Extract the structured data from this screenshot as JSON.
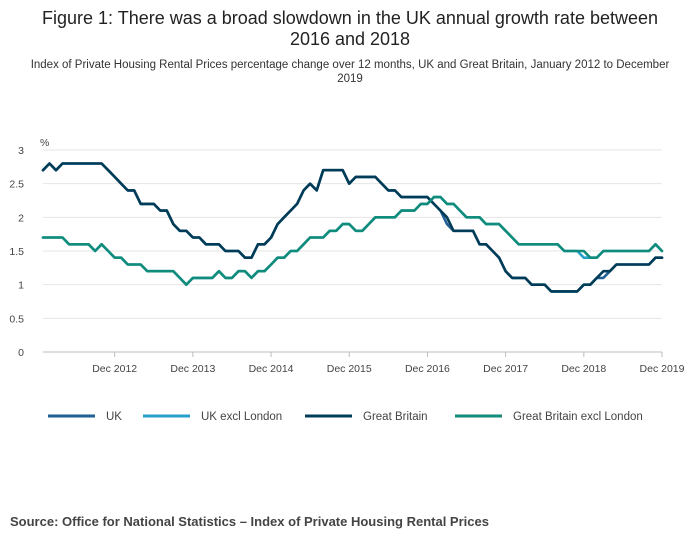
{
  "title": "Figure 1: There was a broad slowdown in the UK annual growth rate between 2016 and 2018",
  "subtitle": "Index of Private Housing Rental Prices percentage change over 12 months, UK and Great Britain, January 2012 to December 2019",
  "source": "Source: Office for National Statistics – Index of Private Housing Rental Prices",
  "colors": {
    "UK": "#206095",
    "UK excl London": "#27a0cc",
    "Great Britain": "#003c57",
    "Great Britain excl London": "#118c7b"
  },
  "chart_data": {
    "type": "line",
    "x_start": "Jan 2012",
    "x_end": "Dec 2019",
    "x_ticks": [
      "Dec 2012",
      "Dec 2013",
      "Dec 2014",
      "Dec 2015",
      "Dec 2016",
      "Dec 2017",
      "Dec 2018",
      "Dec 2019"
    ],
    "y_ticks": [
      "0",
      "0.5",
      "1",
      "1.5",
      "2",
      "2.5",
      "3"
    ],
    "ylim": [
      0,
      3
    ],
    "ylabel": "%",
    "grid": true,
    "legend_position": "bottom",
    "series": [
      {
        "name": "UK",
        "values": [
          2.7,
          2.8,
          2.7,
          2.8,
          2.8,
          2.8,
          2.8,
          2.8,
          2.8,
          2.8,
          2.7,
          2.6,
          2.5,
          2.4,
          2.4,
          2.2,
          2.2,
          2.2,
          2.1,
          2.1,
          1.9,
          1.8,
          1.8,
          1.7,
          1.7,
          1.6,
          1.6,
          1.6,
          1.5,
          1.5,
          1.5,
          1.4,
          1.4,
          1.6,
          1.6,
          1.7,
          1.9,
          2.0,
          2.1,
          2.2,
          2.4,
          2.5,
          2.4,
          2.7,
          2.7,
          2.7,
          2.7,
          2.5,
          2.6,
          2.6,
          2.6,
          2.6,
          2.5,
          2.4,
          2.4,
          2.3,
          2.3,
          2.3,
          2.3,
          2.3,
          2.2,
          2.1,
          1.9,
          1.8,
          1.8,
          1.8,
          1.8,
          1.6,
          1.6,
          1.5,
          1.4,
          1.2,
          1.1,
          1.1,
          1.1,
          1.0,
          1.0,
          1.0,
          0.9,
          0.9,
          0.9,
          0.9,
          0.9,
          1.0,
          1.0,
          1.1,
          1.1,
          1.2,
          1.3,
          1.3,
          1.3,
          1.3,
          1.3,
          1.3,
          1.4,
          1.4
        ]
      },
      {
        "name": "UK excl London",
        "values": [
          1.7,
          1.7,
          1.7,
          1.7,
          1.6,
          1.6,
          1.6,
          1.6,
          1.5,
          1.6,
          1.5,
          1.4,
          1.4,
          1.3,
          1.3,
          1.3,
          1.2,
          1.2,
          1.2,
          1.2,
          1.2,
          1.1,
          1.0,
          1.1,
          1.1,
          1.1,
          1.1,
          1.2,
          1.1,
          1.1,
          1.2,
          1.2,
          1.1,
          1.2,
          1.2,
          1.3,
          1.4,
          1.4,
          1.5,
          1.5,
          1.6,
          1.7,
          1.7,
          1.7,
          1.8,
          1.8,
          1.9,
          1.9,
          1.8,
          1.8,
          1.9,
          2.0,
          2.0,
          2.0,
          2.0,
          2.1,
          2.1,
          2.1,
          2.2,
          2.2,
          2.3,
          2.3,
          2.2,
          2.2,
          2.1,
          2.0,
          2.0,
          2.0,
          1.9,
          1.9,
          1.9,
          1.8,
          1.7,
          1.6,
          1.6,
          1.6,
          1.6,
          1.6,
          1.6,
          1.6,
          1.5,
          1.5,
          1.5,
          1.4,
          1.4,
          1.4,
          1.5,
          1.5,
          1.5,
          1.5,
          1.5,
          1.5,
          1.5,
          1.5,
          1.6,
          1.5
        ]
      },
      {
        "name": "Great Britain",
        "values": [
          2.7,
          2.8,
          2.7,
          2.8,
          2.8,
          2.8,
          2.8,
          2.8,
          2.8,
          2.8,
          2.7,
          2.6,
          2.5,
          2.4,
          2.4,
          2.2,
          2.2,
          2.2,
          2.1,
          2.1,
          1.9,
          1.8,
          1.8,
          1.7,
          1.7,
          1.6,
          1.6,
          1.6,
          1.5,
          1.5,
          1.5,
          1.4,
          1.4,
          1.6,
          1.6,
          1.7,
          1.9,
          2.0,
          2.1,
          2.2,
          2.4,
          2.5,
          2.4,
          2.7,
          2.7,
          2.7,
          2.7,
          2.5,
          2.6,
          2.6,
          2.6,
          2.6,
          2.5,
          2.4,
          2.4,
          2.3,
          2.3,
          2.3,
          2.3,
          2.3,
          2.2,
          2.1,
          2.0,
          1.8,
          1.8,
          1.8,
          1.8,
          1.6,
          1.6,
          1.5,
          1.4,
          1.2,
          1.1,
          1.1,
          1.1,
          1.0,
          1.0,
          1.0,
          0.9,
          0.9,
          0.9,
          0.9,
          0.9,
          1.0,
          1.0,
          1.1,
          1.2,
          1.2,
          1.3,
          1.3,
          1.3,
          1.3,
          1.3,
          1.3,
          1.4,
          1.4
        ]
      },
      {
        "name": "Great Britain excl London",
        "values": [
          1.7,
          1.7,
          1.7,
          1.7,
          1.6,
          1.6,
          1.6,
          1.6,
          1.5,
          1.6,
          1.5,
          1.4,
          1.4,
          1.3,
          1.3,
          1.3,
          1.2,
          1.2,
          1.2,
          1.2,
          1.2,
          1.1,
          1.0,
          1.1,
          1.1,
          1.1,
          1.1,
          1.2,
          1.1,
          1.1,
          1.2,
          1.2,
          1.1,
          1.2,
          1.2,
          1.3,
          1.4,
          1.4,
          1.5,
          1.5,
          1.6,
          1.7,
          1.7,
          1.7,
          1.8,
          1.8,
          1.9,
          1.9,
          1.8,
          1.8,
          1.9,
          2.0,
          2.0,
          2.0,
          2.0,
          2.1,
          2.1,
          2.1,
          2.2,
          2.2,
          2.3,
          2.3,
          2.2,
          2.2,
          2.1,
          2.0,
          2.0,
          2.0,
          1.9,
          1.9,
          1.9,
          1.8,
          1.7,
          1.6,
          1.6,
          1.6,
          1.6,
          1.6,
          1.6,
          1.6,
          1.5,
          1.5,
          1.5,
          1.5,
          1.4,
          1.4,
          1.5,
          1.5,
          1.5,
          1.5,
          1.5,
          1.5,
          1.5,
          1.5,
          1.6,
          1.5
        ]
      }
    ]
  }
}
